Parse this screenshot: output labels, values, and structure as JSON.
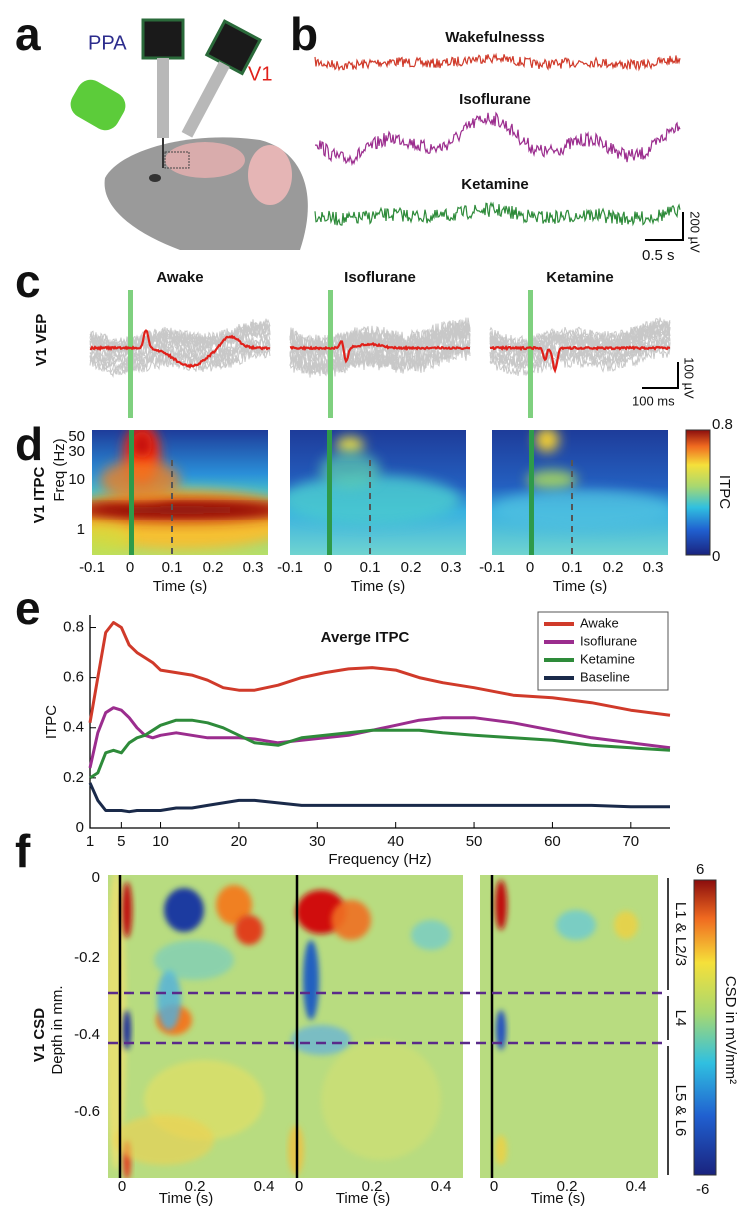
{
  "panels": {
    "a": {
      "label": "a",
      "probe_labels": [
        "PPA",
        "V1"
      ]
    },
    "b": {
      "label": "b",
      "conditions": [
        "Wakefulnesss",
        "Isoflurane",
        "Ketamine"
      ],
      "scale_amp": "200 µV",
      "scale_time": "0.5 s"
    },
    "c": {
      "label": "c",
      "row_label": "V1 VEP",
      "conditions": [
        "Awake",
        "Isoflurane",
        "Ketamine"
      ],
      "scale_amp": "100 µV",
      "scale_time": "100 ms"
    },
    "d": {
      "label": "d",
      "row_label": "V1 ITPC",
      "y_label": "Freq (Hz)",
      "yticks": [
        "50",
        "30",
        "10",
        "1"
      ],
      "xticks": [
        "-0.1",
        "0",
        "0.1",
        "0.2",
        "0.3"
      ],
      "x_label": "Time (s)",
      "colorbar_label": "ITPC",
      "colorbar_ticks": [
        "0.8",
        "0"
      ]
    },
    "f": {
      "label": "f",
      "row_label": "V1 CSD",
      "y_label": "Depth in mm.",
      "yticks": [
        "0",
        "-0.2",
        "-0.4",
        "-0.6"
      ],
      "xticks": [
        "0",
        "0.2",
        "0.4"
      ],
      "x_label": "Time (s)",
      "layers": [
        "L1 & L2/3",
        "L4",
        "L5 & L6"
      ],
      "colorbar_label": "CSD in mV/mm²",
      "colorbar_ticks": [
        "6",
        "-6"
      ]
    }
  },
  "chart_data": {
    "type": "line",
    "panel_label": "e",
    "title": "Averge ITPC",
    "x_label": "Frequency (Hz)",
    "y_label": "ITPC",
    "x": [
      1,
      2,
      3,
      4,
      5,
      6,
      7,
      8,
      9,
      10,
      12,
      14,
      16,
      18,
      20,
      22,
      25,
      28,
      31,
      34,
      37,
      40,
      43,
      46,
      50,
      55,
      60,
      65,
      70,
      75
    ],
    "xlim": [
      1,
      75
    ],
    "ylim": [
      0,
      0.85
    ],
    "xticks": [
      1,
      5,
      10,
      20,
      30,
      40,
      50,
      60,
      70
    ],
    "yticks": [
      0,
      0.2,
      0.4,
      0.6,
      0.8
    ],
    "legend": "upper right",
    "series": [
      {
        "name": "Awake",
        "color": "#d03a2a",
        "values": [
          0.42,
          0.6,
          0.78,
          0.82,
          0.8,
          0.73,
          0.7,
          0.68,
          0.66,
          0.63,
          0.62,
          0.61,
          0.59,
          0.56,
          0.55,
          0.55,
          0.57,
          0.6,
          0.62,
          0.635,
          0.64,
          0.63,
          0.6,
          0.58,
          0.56,
          0.53,
          0.52,
          0.5,
          0.47,
          0.45
        ]
      },
      {
        "name": "Isoflurane",
        "color": "#9b2d8e",
        "values": [
          0.24,
          0.38,
          0.46,
          0.48,
          0.47,
          0.44,
          0.4,
          0.37,
          0.36,
          0.37,
          0.38,
          0.37,
          0.36,
          0.36,
          0.36,
          0.355,
          0.34,
          0.35,
          0.36,
          0.37,
          0.39,
          0.41,
          0.43,
          0.44,
          0.44,
          0.42,
          0.39,
          0.36,
          0.34,
          0.32
        ]
      },
      {
        "name": "Ketamine",
        "color": "#2e8b3a",
        "values": [
          0.2,
          0.22,
          0.3,
          0.31,
          0.3,
          0.34,
          0.36,
          0.37,
          0.39,
          0.41,
          0.43,
          0.43,
          0.42,
          0.4,
          0.37,
          0.34,
          0.33,
          0.36,
          0.37,
          0.38,
          0.39,
          0.39,
          0.39,
          0.38,
          0.37,
          0.36,
          0.35,
          0.33,
          0.32,
          0.31
        ]
      },
      {
        "name": "Baseline",
        "color": "#1a2a4a",
        "values": [
          0.18,
          0.11,
          0.07,
          0.07,
          0.07,
          0.065,
          0.07,
          0.07,
          0.07,
          0.07,
          0.08,
          0.08,
          0.09,
          0.1,
          0.11,
          0.11,
          0.1,
          0.09,
          0.09,
          0.09,
          0.09,
          0.09,
          0.09,
          0.09,
          0.09,
          0.09,
          0.09,
          0.09,
          0.085,
          0.085
        ]
      }
    ]
  }
}
